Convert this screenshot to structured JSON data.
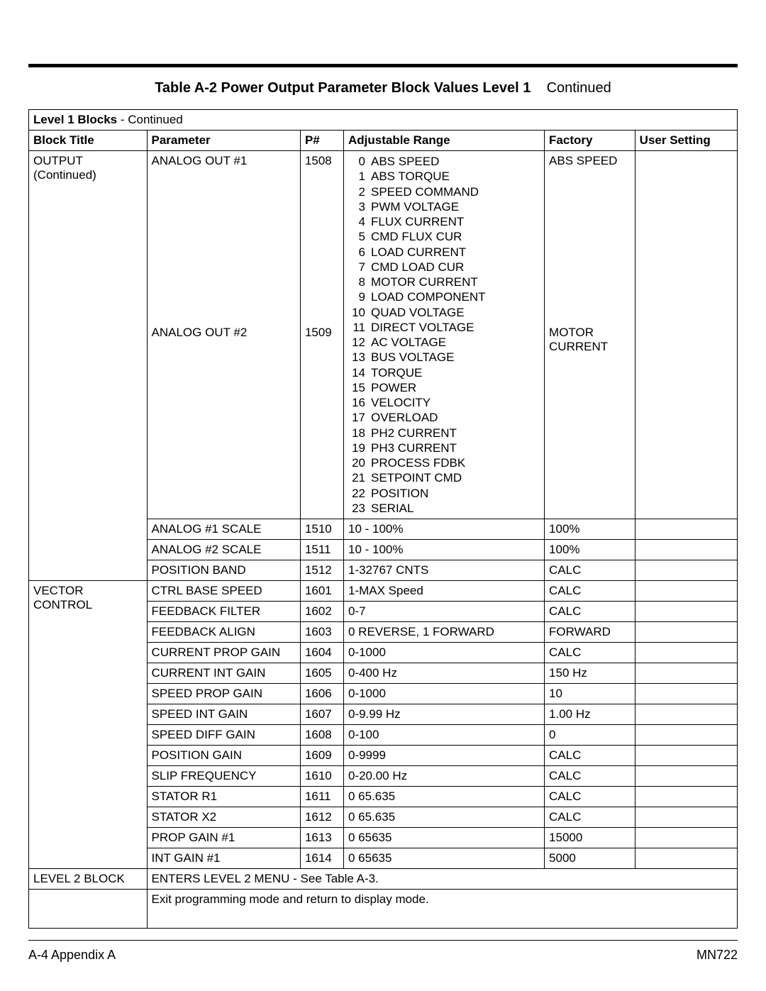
{
  "title": {
    "label_bold": "Table A-2  Power Output Parameter Block Values Level 1",
    "label_cont": "Continued"
  },
  "subheader": {
    "bold": "Level 1 Blocks",
    "cont": " - Continued"
  },
  "columns": {
    "block": "Block Title",
    "param": "Parameter",
    "pnum": "P#",
    "range": "Adjustable Range",
    "factory": "Factory",
    "user": "User Setting"
  },
  "blocks": {
    "output": {
      "title_line1": "OUTPUT",
      "title_line2": "(Continued)"
    },
    "vector": {
      "title": "VECTOR CONTROL"
    },
    "level2": {
      "title": "LEVEL 2 BLOCK"
    }
  },
  "analog_out_options": [
    {
      "idx": "0",
      "label": "ABS SPEED"
    },
    {
      "idx": "1",
      "label": "ABS TORQUE"
    },
    {
      "idx": "2",
      "label": "SPEED COMMAND"
    },
    {
      "idx": "3",
      "label": "PWM VOLTAGE"
    },
    {
      "idx": "4",
      "label": "FLUX CURRENT"
    },
    {
      "idx": "5",
      "label": "CMD FLUX CUR"
    },
    {
      "idx": "6",
      "label": "LOAD CURRENT"
    },
    {
      "idx": "7",
      "label": "CMD LOAD CUR"
    },
    {
      "idx": "8",
      "label": "MOTOR CURRENT"
    },
    {
      "idx": "9",
      "label": "LOAD COMPONENT"
    },
    {
      "idx": "10",
      "label": "QUAD VOLTAGE"
    },
    {
      "idx": "11",
      "label": "DIRECT VOLTAGE"
    },
    {
      "idx": "12",
      "label": "AC VOLTAGE"
    },
    {
      "idx": "13",
      "label": "BUS VOLTAGE"
    },
    {
      "idx": "14",
      "label": "TORQUE"
    },
    {
      "idx": "15",
      "label": "POWER"
    },
    {
      "idx": "16",
      "label": "VELOCITY"
    },
    {
      "idx": "17",
      "label": "OVERLOAD"
    },
    {
      "idx": "18",
      "label": "PH2 CURRENT"
    },
    {
      "idx": "19",
      "label": "PH3 CURRENT"
    },
    {
      "idx": "20",
      "label": "PROCESS FDBK"
    },
    {
      "idx": "21",
      "label": "SETPOINT CMD"
    },
    {
      "idx": "22",
      "label": "POSITION"
    },
    {
      "idx": "23",
      "label": "SERIAL"
    }
  ],
  "rows": {
    "ao1": {
      "param": "ANALOG OUT #1",
      "pnum": "1508",
      "factory": "ABS SPEED"
    },
    "ao2": {
      "param": "ANALOG OUT #2",
      "pnum": "1509",
      "factory": "MOTOR CURRENT"
    },
    "a1scale": {
      "param": "ANALOG #1 SCALE",
      "pnum": "1510",
      "range": "10 - 100%",
      "factory": "100%"
    },
    "a2scale": {
      "param": "ANALOG #2 SCALE",
      "pnum": "1511",
      "range": "10 - 100%",
      "factory": "100%"
    },
    "posband": {
      "param": "POSITION BAND",
      "pnum": "1512",
      "range": "1-32767 CNTS",
      "factory": "CALC"
    },
    "cbs": {
      "param": "CTRL BASE SPEED",
      "pnum": "1601",
      "range": "1-MAX Speed",
      "factory": "CALC"
    },
    "ffilt": {
      "param": "FEEDBACK FILTER",
      "pnum": "1602",
      "range": "0-7",
      "factory": "CALC"
    },
    "falgn": {
      "param": "FEEDBACK ALIGN",
      "pnum": "1603",
      "range": "0 REVERSE, 1  FORWARD",
      "factory": "FORWARD"
    },
    "cpg": {
      "param": "CURRENT PROP GAIN",
      "pnum": "1604",
      "range": "0-1000",
      "factory": "CALC"
    },
    "cig": {
      "param": "CURRENT INT GAIN",
      "pnum": "1605",
      "range": "0-400 Hz",
      "factory": "150 Hz"
    },
    "spg": {
      "param": "SPEED PROP GAIN",
      "pnum": "1606",
      "range": "0-1000",
      "factory": "10"
    },
    "sig": {
      "param": "SPEED INT GAIN",
      "pnum": "1607",
      "range": "0-9.99 Hz",
      "factory": "1.00 Hz"
    },
    "sdg": {
      "param": "SPEED DIFF GAIN",
      "pnum": "1608",
      "range": "0-100",
      "factory": "0"
    },
    "pg": {
      "param": "POSITION GAIN",
      "pnum": "1609",
      "range": "0-9999",
      "factory": "CALC"
    },
    "slip": {
      "param": "SLIP FREQUENCY",
      "pnum": "1610",
      "range": "0-20.00 Hz",
      "factory": "CALC"
    },
    "sr1": {
      "param": "STATOR R1",
      "pnum": "1611",
      "range": "0  65.635",
      "factory": "CALC"
    },
    "sx2": {
      "param": "STATOR X2",
      "pnum": "1612",
      "range": "0  65.635",
      "factory": "CALC"
    },
    "pg1": {
      "param": "PROP GAIN #1",
      "pnum": "1613",
      "range": "0  65635",
      "factory": "15000"
    },
    "ig1": {
      "param": "INT GAIN #1",
      "pnum": "1614",
      "range": "0  65635",
      "factory": "5000"
    }
  },
  "level2_text": "ENTERS LEVEL 2 MENU - See Table A-3.",
  "exit_text": "Exit programming mode and return to display mode.",
  "footer": {
    "left": "A-4 Appendix A",
    "right": "MN722"
  }
}
